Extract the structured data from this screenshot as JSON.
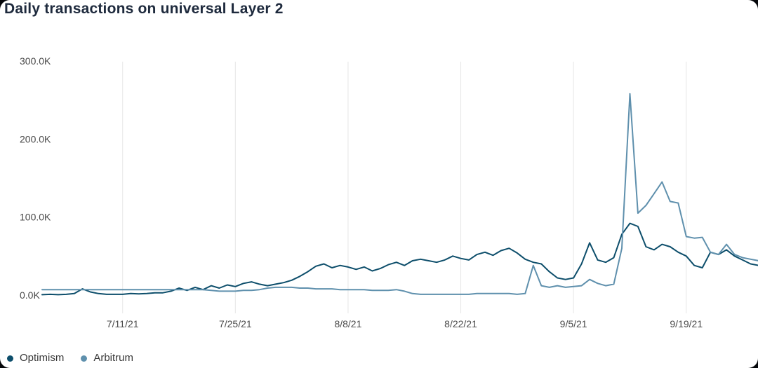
{
  "chart_data": {
    "type": "line",
    "title": "Daily transactions on universal Layer 2",
    "x_unit": "date",
    "y_unit": "transactions per day (thousands)",
    "ylim_k": [
      0,
      300
    ],
    "grid": "vertical-only",
    "legend_position": "bottom-left",
    "x": [
      "7/1/21",
      "7/2/21",
      "7/3/21",
      "7/4/21",
      "7/5/21",
      "7/6/21",
      "7/7/21",
      "7/8/21",
      "7/9/21",
      "7/10/21",
      "7/11/21",
      "7/12/21",
      "7/13/21",
      "7/14/21",
      "7/15/21",
      "7/16/21",
      "7/17/21",
      "7/18/21",
      "7/19/21",
      "7/20/21",
      "7/21/21",
      "7/22/21",
      "7/23/21",
      "7/24/21",
      "7/25/21",
      "7/26/21",
      "7/27/21",
      "7/28/21",
      "7/29/21",
      "7/30/21",
      "7/31/21",
      "8/1/21",
      "8/2/21",
      "8/3/21",
      "8/4/21",
      "8/5/21",
      "8/6/21",
      "8/7/21",
      "8/8/21",
      "8/9/21",
      "8/10/21",
      "8/11/21",
      "8/12/21",
      "8/13/21",
      "8/14/21",
      "8/15/21",
      "8/16/21",
      "8/17/21",
      "8/18/21",
      "8/19/21",
      "8/20/21",
      "8/21/21",
      "8/22/21",
      "8/23/21",
      "8/24/21",
      "8/25/21",
      "8/26/21",
      "8/27/21",
      "8/28/21",
      "8/29/21",
      "8/30/21",
      "8/31/21",
      "9/1/21",
      "9/2/21",
      "9/3/21",
      "9/4/21",
      "9/5/21",
      "9/6/21",
      "9/7/21",
      "9/8/21",
      "9/9/21",
      "9/10/21",
      "9/11/21",
      "9/12/21",
      "9/13/21",
      "9/14/21",
      "9/15/21",
      "9/16/21",
      "9/17/21",
      "9/18/21",
      "9/19/21",
      "9/20/21",
      "9/21/21",
      "9/22/21",
      "9/23/21",
      "9/24/21",
      "9/25/21",
      "9/26/21",
      "9/27/21",
      "9/28/21"
    ],
    "x_ticks": [
      {
        "index": 10,
        "label": "7/11/21"
      },
      {
        "index": 24,
        "label": "7/25/21"
      },
      {
        "index": 38,
        "label": "8/8/21"
      },
      {
        "index": 52,
        "label": "8/22/21"
      },
      {
        "index": 66,
        "label": "9/5/21"
      },
      {
        "index": 80,
        "label": "9/19/21"
      }
    ],
    "y_ticks": [
      {
        "value_k": 0,
        "label": "0.0K"
      },
      {
        "value_k": 100,
        "label": "100.0K"
      },
      {
        "value_k": 200,
        "label": "200.0K"
      },
      {
        "value_k": 300,
        "label": "300.0K"
      }
    ],
    "series": [
      {
        "name": "Optimism",
        "color": "#0d4e6b",
        "values_k": [
          0.5,
          1,
          0.5,
          1,
          2,
          8,
          4,
          2,
          1,
          1,
          1,
          2,
          1.5,
          2,
          3,
          3,
          5,
          9,
          6,
          10,
          7,
          12,
          9,
          13,
          11,
          15,
          17,
          14,
          12,
          14,
          16,
          19,
          24,
          30,
          37,
          40,
          35,
          38,
          36,
          33,
          36,
          31,
          34,
          39,
          42,
          38,
          44,
          46,
          44,
          42,
          45,
          50,
          47,
          45,
          52,
          55,
          51,
          57,
          60,
          54,
          46,
          42,
          40,
          30,
          22,
          20,
          22,
          40,
          67,
          45,
          42,
          48,
          78,
          92,
          88,
          62,
          58,
          65,
          62,
          55,
          50,
          38,
          35,
          55,
          52,
          58,
          50,
          45,
          40,
          38
        ]
      },
      {
        "name": "Arbitrum",
        "color": "#5f90ad",
        "values_k": [
          7,
          7,
          7,
          7,
          7,
          7,
          7,
          7,
          7,
          7,
          7,
          7,
          7,
          7,
          7,
          7,
          7,
          7,
          7,
          7,
          7,
          6,
          5,
          5,
          5,
          6,
          6,
          7,
          9,
          10,
          10,
          10,
          9,
          9,
          8,
          8,
          8,
          7,
          7,
          7,
          7,
          6,
          6,
          6,
          7,
          5,
          2,
          1,
          1,
          1,
          1,
          1,
          1,
          1,
          2,
          2,
          2,
          2,
          2,
          1,
          2,
          38,
          12,
          10,
          12,
          10,
          11,
          12,
          20,
          15,
          12,
          14,
          60,
          258,
          105,
          115,
          130,
          145,
          120,
          118,
          75,
          73,
          74,
          55,
          52,
          65,
          52,
          48,
          46,
          44
        ]
      }
    ]
  },
  "colors": {
    "background": "#ffffff",
    "page_background": "#06080b",
    "title_text": "#1e2a3d",
    "axis_text": "#4a4a4a",
    "legend_text": "#383838",
    "grid_line": "#e6e6e6"
  }
}
